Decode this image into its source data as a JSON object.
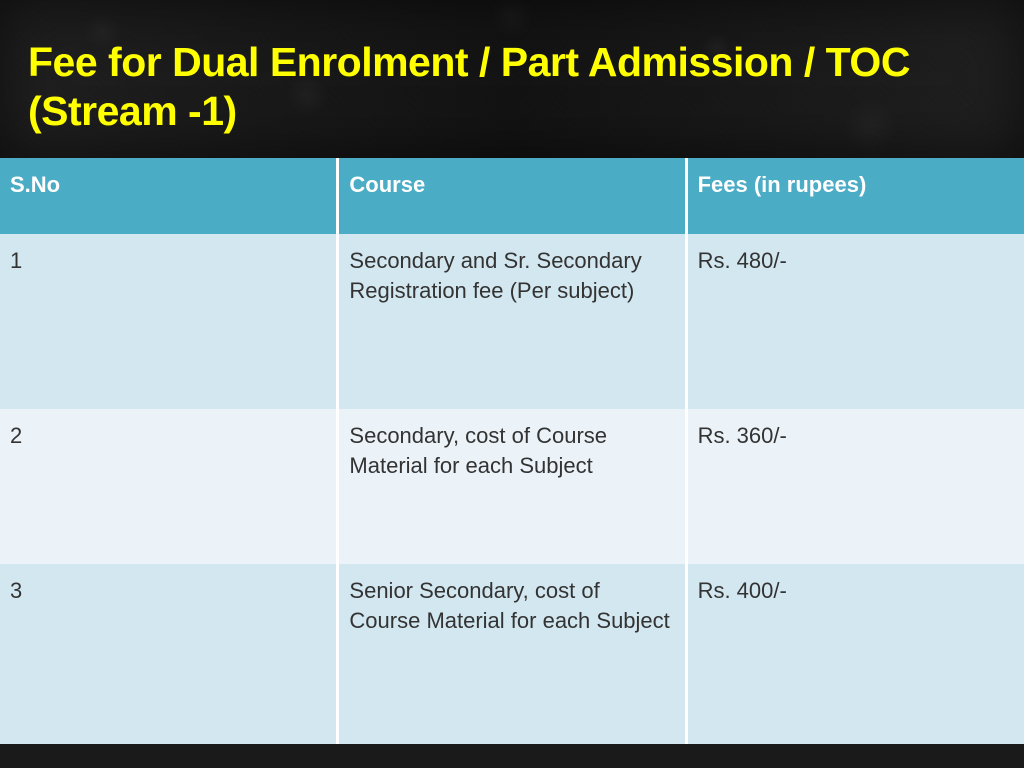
{
  "title": {
    "text": "Fee for Dual Enrolment / Part Admission / TOC (Stream -1)",
    "color": "#ffff00",
    "fontsize": 41
  },
  "table": {
    "type": "table",
    "header_bg": "#4bacc6",
    "header_text_color": "#ffffff",
    "row_alt_bg": [
      "#d3e7f0",
      "#ebf3f8"
    ],
    "cell_text_color": "#333333",
    "border_color": "#ffffff",
    "columns": [
      {
        "label": "S.No",
        "width": "33%"
      },
      {
        "label": "Course",
        "width": "34%"
      },
      {
        "label": "Fees (in rupees)",
        "width": "33%"
      }
    ],
    "rows": [
      {
        "sno": "1",
        "course": "Secondary and Sr. Secondary Registration fee (Per subject)",
        "fees": "Rs. 480/-"
      },
      {
        "sno": "2",
        "course": "Secondary, cost of Course Material for each Subject",
        "fees": "Rs. 360/-"
      },
      {
        "sno": "3",
        "course": "Senior Secondary, cost of Course Material for each Subject",
        "fees": "Rs. 400/-"
      }
    ]
  },
  "background_color": "#1a1a1a"
}
